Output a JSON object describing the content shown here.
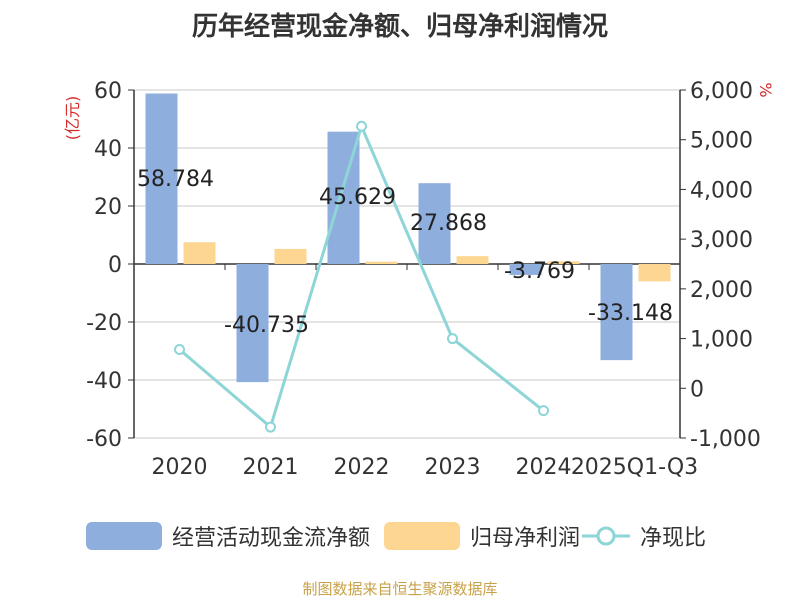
{
  "title": "历年经营现金净额、归母净利润情况",
  "source": "制图数据来自恒生聚源数据库",
  "colors": {
    "cash": "#8eaedd",
    "profit": "#fdd692",
    "ratio": "#8ed5d8"
  },
  "chart_data": {
    "type": "bar",
    "title": "历年经营现金净额、归母净利润情况",
    "categories": [
      "2020",
      "2021",
      "2022",
      "2023",
      "2024",
      "2025Q1-Q3"
    ],
    "series": [
      {
        "name": "经营活动现金流净额",
        "type": "bar",
        "axis": "left",
        "values": [
          58.784,
          -40.735,
          45.629,
          27.868,
          -3.769,
          -33.148
        ],
        "labels": [
          "58.784",
          "-40.735",
          "45.629",
          "27.868",
          "-3.769",
          "-33.148"
        ]
      },
      {
        "name": "归母净利润",
        "type": "bar",
        "axis": "left",
        "values": [
          7.5,
          5.2,
          0.8,
          2.7,
          0.9,
          -6.0
        ]
      },
      {
        "name": "净现比",
        "type": "line",
        "axis": "right",
        "values": [
          780,
          -780,
          5270,
          1000,
          -450,
          null
        ]
      }
    ],
    "ylabel_left": "(亿元)",
    "ylabel_right": "%",
    "ylim_left": [
      -60,
      60
    ],
    "ylim_right": [
      -1000,
      6000
    ],
    "yticks_left": [
      "60",
      "40",
      "20",
      "0",
      "-20",
      "-40",
      "-60"
    ],
    "yticks_right": [
      "6,000",
      "5,000",
      "4,000",
      "3,000",
      "2,000",
      "1,000",
      "0",
      "-1,000"
    ],
    "grid": true,
    "legend_position": "bottom"
  }
}
